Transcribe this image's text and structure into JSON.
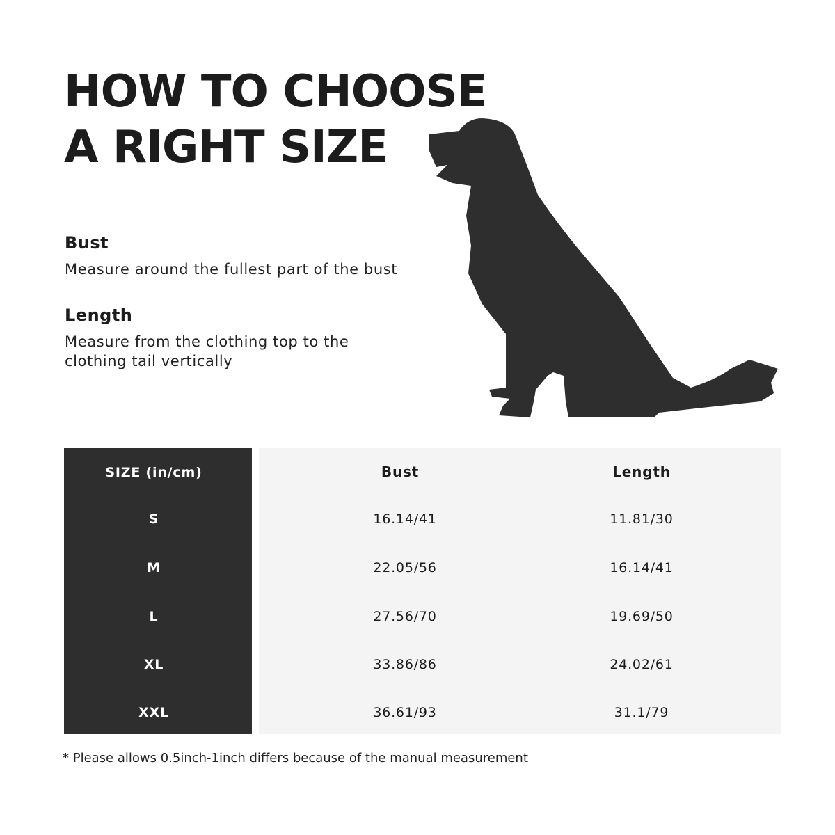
{
  "title": {
    "line1": "HOW TO CHOOSE",
    "line2": "A RIGHT SIZE"
  },
  "guide": [
    {
      "heading": "Bust",
      "text": [
        "Measure around the fullest part of the bust"
      ]
    },
    {
      "heading": "Length",
      "text": [
        "Measure from the clothing top to the",
        "clothing tail vertically"
      ]
    }
  ],
  "illustration": {
    "icon": "dog-silhouette-icon",
    "color": "#2e2e2e"
  },
  "table": {
    "headers": [
      "SIZE  (in/cm)",
      "Bust",
      "Length"
    ],
    "rows": [
      {
        "size": "S",
        "bust": "16.14/41",
        "length": "11.81/30"
      },
      {
        "size": "M",
        "bust": "22.05/56",
        "length": "16.14/41"
      },
      {
        "size": "L",
        "bust": "27.56/70",
        "length": "19.69/50"
      },
      {
        "size": "XL",
        "bust": "33.86/86",
        "length": "24.02/61"
      },
      {
        "size": "XXL",
        "bust": "36.61/93",
        "length": "31.1/79"
      }
    ],
    "colors": {
      "size_column": "#2e2e2e",
      "data_area": "#f4f4f4"
    }
  },
  "footnote": "* Please allows 0.5inch-1inch differs because of the  manual measurement"
}
